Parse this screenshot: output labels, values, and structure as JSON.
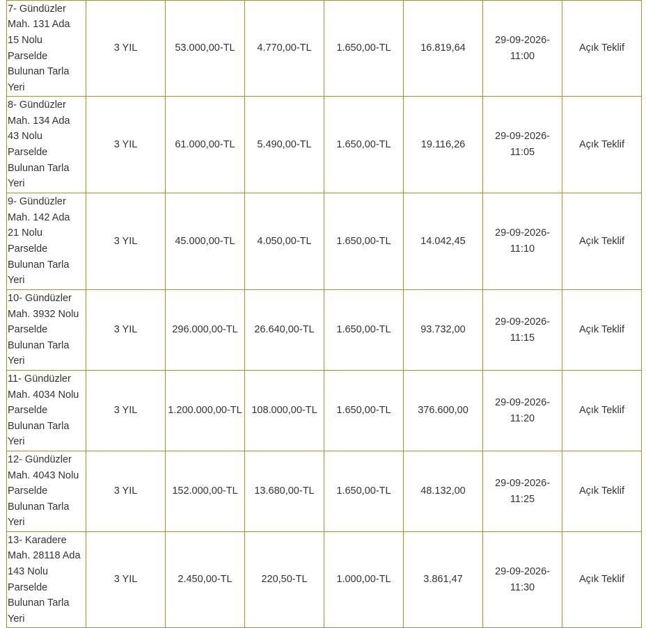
{
  "rows": [
    {
      "desc_lines": [
        "7- Gündüzler",
        "Mah. 131 Ada",
        "15 Nolu",
        "Parselde",
        "Bulunan Tarla",
        "Yeri"
      ],
      "sure": "3 YIL",
      "muhammen": "53.000,00-TL",
      "teminat": "4.770,00-TL",
      "sartname": "1.650,00-TL",
      "bedel": "16.819,64",
      "tarih": "29-09-2026-",
      "saat": "11:00",
      "usul": "Açık Teklif"
    },
    {
      "desc_lines": [
        "8- Gündüzler",
        "Mah. 134 Ada",
        "43 Nolu",
        "Parselde",
        "Bulunan Tarla",
        "Yeri"
      ],
      "sure": "3 YIL",
      "muhammen": "61.000,00-TL",
      "teminat": "5.490,00-TL",
      "sartname": "1.650,00-TL",
      "bedel": "19.116,26",
      "tarih": "29-09-2026-",
      "saat": "11:05",
      "usul": "Açık Teklif"
    },
    {
      "desc_lines": [
        "9- Gündüzler",
        "Mah. 142 Ada",
        "21 Nolu",
        "Parselde",
        "Bulunan Tarla",
        "Yeri"
      ],
      "sure": "3 YIL",
      "muhammen": "45.000,00-TL",
      "teminat": "4.050,00-TL",
      "sartname": "1.650,00-TL",
      "bedel": "14.042,45",
      "tarih": "29-09-2026-",
      "saat": "11:10",
      "usul": "Açık Teklif"
    },
    {
      "desc_lines": [
        "10- Gündüzler",
        "Mah. 3932 Nolu",
        "Parselde",
        "Bulunan Tarla",
        "Yeri"
      ],
      "sure": "3 YIL",
      "muhammen": "296.000,00-TL",
      "teminat": "26.640,00-TL",
      "sartname": "1.650,00-TL",
      "bedel": "93.732,00",
      "tarih": "29-09-2026-",
      "saat": "11:15",
      "usul": "Açık Teklif"
    },
    {
      "desc_lines": [
        "11- Gündüzler",
        "Mah. 4034 Nolu",
        "Parselde",
        "Bulunan Tarla",
        "Yeri"
      ],
      "sure": "3 YIL",
      "muhammen": "1.200.000,00-TL",
      "teminat": "108.000,00-TL",
      "sartname": "1.650,00-TL",
      "bedel": "376.600,00",
      "tarih": "29-09-2026-",
      "saat": "11:20",
      "usul": "Açık Teklif"
    },
    {
      "desc_lines": [
        "12- Gündüzler",
        "Mah. 4043 Nolu",
        "Parselde",
        "Bulunan Tarla",
        "Yeri"
      ],
      "sure": "3 YIL",
      "muhammen": "152.000,00-TL",
      "teminat": "13.680,00-TL",
      "sartname": "1.650,00-TL",
      "bedel": "48.132,00",
      "tarih": "29-09-2026-",
      "saat": "11:25",
      "usul": "Açık Teklif"
    },
    {
      "desc_lines": [
        "13- Karadere",
        "Mah. 28118 Ada",
        "143 Nolu",
        "Parselde",
        "Bulunan Tarla",
        "Yeri"
      ],
      "sure": "3 YIL",
      "muhammen": "2.450,00-TL",
      "teminat": "220,50-TL",
      "sartname": "1.000,00-TL",
      "bedel": "3.861,47",
      "tarih": "29-09-2026-",
      "saat": "11:30",
      "usul": "Açık Teklif"
    }
  ],
  "colors": {
    "border": "#b08d2c",
    "text": "#333333",
    "background": "#ffffff"
  }
}
